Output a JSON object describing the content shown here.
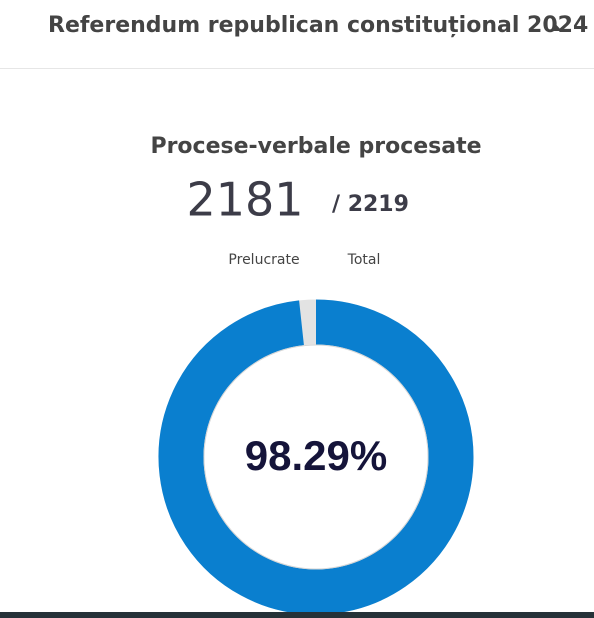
{
  "header": {
    "title": "Referendum republican constituțional 2024"
  },
  "gauge": {
    "title": "Procese-verbale procesate",
    "processed": 2181,
    "total": {
      "value": 2219,
      "label": "/ 2219"
    },
    "processed_label": "Prelucrate",
    "total_label": "Total",
    "percent": "98.29%"
  }
}
